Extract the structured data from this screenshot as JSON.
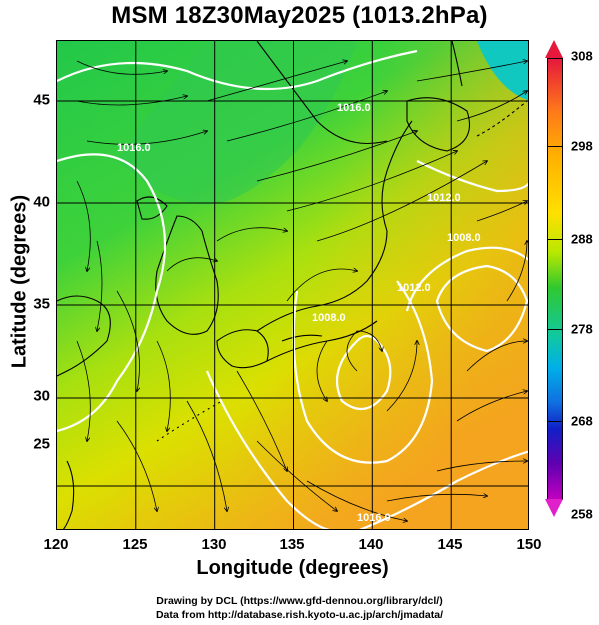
{
  "title": "MSM 18Z30May2025 (1013.2hPa)",
  "x_axis": {
    "label": "Longitude (degrees)",
    "ticks": [
      "120",
      "125",
      "130",
      "135",
      "140",
      "145",
      "150"
    ],
    "range": [
      120,
      150
    ]
  },
  "y_axis": {
    "label": "Latitude  (degrees)",
    "ticks": [
      "25",
      "30",
      "35",
      "40",
      "45"
    ],
    "range": [
      22.5,
      47.6
    ]
  },
  "colorbar": {
    "ticks": [
      "308",
      "298",
      "288",
      "278",
      "268",
      "258"
    ],
    "range": [
      258,
      308
    ]
  },
  "contour_labels": [
    "1008.0",
    "1016.0",
    "1012.0",
    "1016.0",
    "1008.0",
    "1012.0",
    "1016.0"
  ],
  "credits": {
    "line1": "Drawing by DCL (https://www.gfd-dennou.org/library/dcl/)",
    "line2": "Data from http://database.rish.kyoto-u.ac.jp/arch/jmadata/"
  },
  "colors": {
    "warm": "#f5a623",
    "mild": "#c8e000",
    "cool": "#20c850",
    "contour": "#ffffff",
    "coast": "#000000"
  },
  "features": {
    "low_center_lonlat": [
      136.8,
      30.8
    ],
    "high_center_lonlat": [
      146.0,
      36.8
    ]
  }
}
